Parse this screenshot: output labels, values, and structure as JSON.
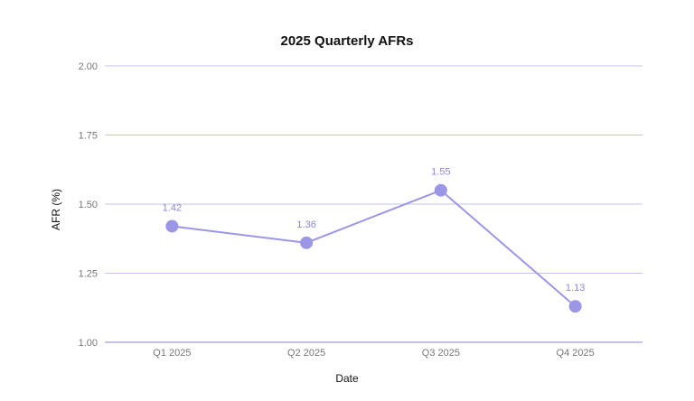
{
  "chart_data": {
    "type": "line",
    "title": "2025 Quarterly AFRs",
    "xlabel": "Date",
    "ylabel": "AFR (%)",
    "categories": [
      "Q1 2025",
      "Q2 2025",
      "Q3 2025",
      "Q4 2025"
    ],
    "series": [
      {
        "values": [
          1.42,
          1.36,
          1.55,
          1.13
        ]
      }
    ],
    "data_labels": [
      "1.42",
      "1.36",
      "1.55",
      "1.13"
    ],
    "ylim": [
      1.0,
      2.0
    ],
    "yticks": [
      "1.00",
      "1.25",
      "1.50",
      "1.75",
      "2.00"
    ],
    "grid": true,
    "legend": "none",
    "colors": {
      "series": "#9b97e6",
      "grid": "#c4c2ee",
      "axis": "#b0aee6",
      "label": "#8a86dd"
    }
  }
}
